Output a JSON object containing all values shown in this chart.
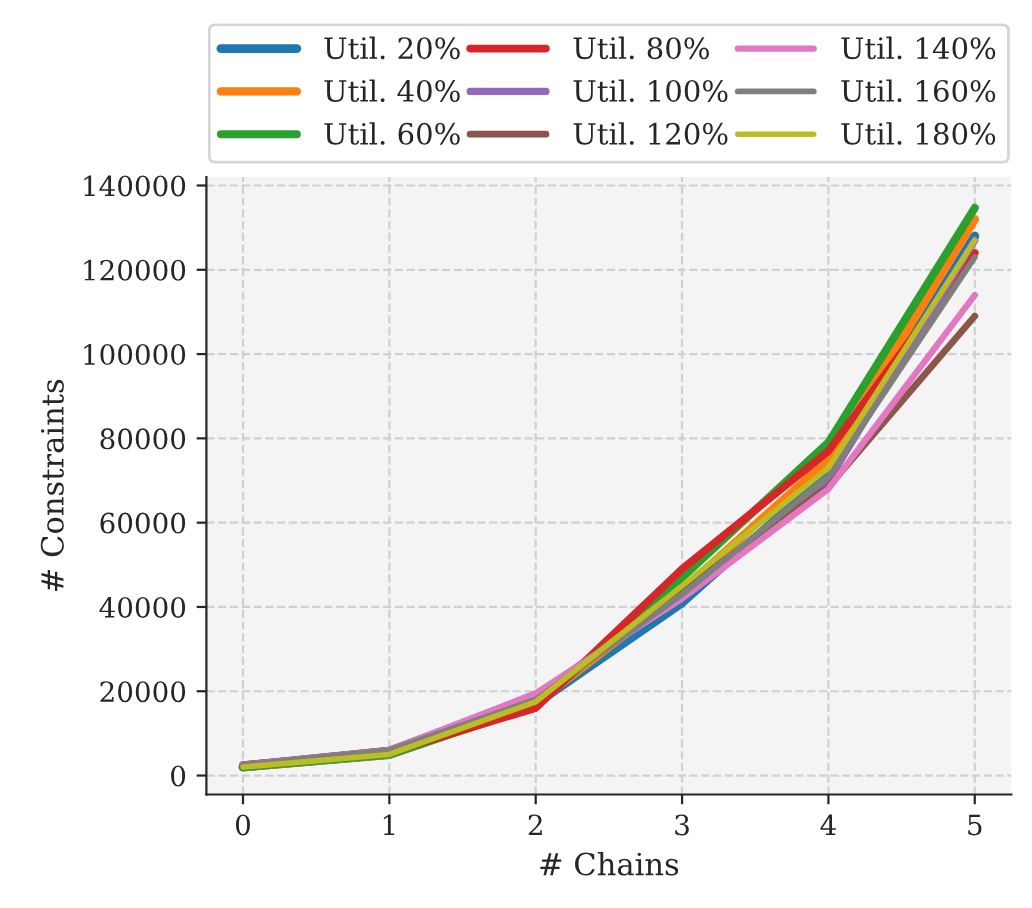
{
  "chart_data": {
    "type": "line",
    "xlabel": "# Chains",
    "ylabel": "# Constraints",
    "x": [
      0,
      1,
      2,
      3,
      4,
      5
    ],
    "series": [
      {
        "name": "Util. 20%",
        "color": "#1f77b4",
        "values": [
          2000,
          5000,
          17000,
          41000,
          72000,
          128000
        ]
      },
      {
        "name": "Util. 40%",
        "color": "#ff7f0e",
        "values": [
          2000,
          5000,
          17000,
          44000,
          75000,
          132000
        ]
      },
      {
        "name": "Util. 60%",
        "color": "#2ca02c",
        "values": [
          2000,
          5000,
          16500,
          47000,
          79000,
          134700
        ]
      },
      {
        "name": "Util. 80%",
        "color": "#d62728",
        "values": [
          2500,
          5500,
          16000,
          49000,
          77000,
          124000
        ]
      },
      {
        "name": "Util. 100%",
        "color": "#9467bd",
        "values": [
          2500,
          6000,
          19000,
          43000,
          70000,
          127000
        ]
      },
      {
        "name": "Util. 120%",
        "color": "#8c564b",
        "values": [
          2500,
          6000,
          18500,
          44000,
          68500,
          109000
        ]
      },
      {
        "name": "Util. 140%",
        "color": "#e377c2",
        "values": [
          2500,
          6000,
          19500,
          42000,
          68000,
          114000
        ]
      },
      {
        "name": "Util. 160%",
        "color": "#7f7f7f",
        "values": [
          2500,
          6000,
          18000,
          43000,
          71000,
          123000
        ]
      },
      {
        "name": "Util. 180%",
        "color": "#bcbd22",
        "values": [
          2000,
          5000,
          17500,
          45000,
          73000,
          127000
        ]
      }
    ],
    "xlim": [
      -0.25,
      5.25
    ],
    "xticks": [
      0,
      1,
      2,
      3,
      4,
      5
    ],
    "ylim": [
      -4500,
      142000
    ],
    "yticks": [
      0,
      20000,
      40000,
      60000,
      80000,
      100000,
      120000,
      140000
    ],
    "grid": true,
    "legend": "top",
    "line_style": "solid",
    "marker": "none"
  }
}
